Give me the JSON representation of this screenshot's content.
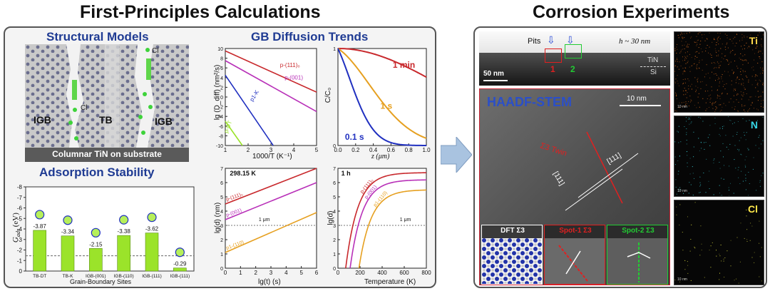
{
  "headers": {
    "left": "First-Principles Calculations",
    "right": "Corrosion Experiments"
  },
  "structural_models": {
    "title": "Structural Models",
    "labels": {
      "igb_left": "IGB",
      "tb": "TB",
      "igb_right": "IGB",
      "cl1": "Cl",
      "cl2": "Cl"
    },
    "caption": "Columnar TiN  on substrate"
  },
  "adsorption": {
    "title": "Adsorption Stability",
    "ylabel": "G",
    "ylabel_sub": "ads",
    "ylabel_unit": "(eV)",
    "xlabel": "Grain-Boundary Sites",
    "yticks": [
      "-8",
      "-7",
      "-6",
      "-5",
      "-4",
      "-3",
      "-2",
      "-1",
      "0"
    ],
    "chart_data": {
      "type": "bar",
      "categories": [
        "TB-DT",
        "TB-K",
        "IGB-(001)",
        "IGB-(110)",
        "IGB-(111)",
        "IGB-(111)"
      ],
      "values": [
        -3.87,
        -3.34,
        -2.15,
        -3.38,
        -3.62,
        -0.29
      ],
      "value_labels": [
        "-3.87",
        "-3.34",
        "-2.15",
        "-3.38",
        "-3.62",
        "-0.29"
      ],
      "ylim": [
        0,
        -8
      ],
      "bar_color": "#9be32a"
    }
  },
  "gb_diffusion": {
    "title": "GB Diffusion Trends",
    "p1": {
      "ylabel": "lg (D_diff) (nm²/s)",
      "xlabel": "1000/T (K⁻¹)",
      "xticks": [
        "1",
        "2",
        "3",
        "4",
        "5"
      ],
      "yticks": [
        "-10",
        "-8",
        "-6",
        "-4",
        "-2",
        "0",
        "2",
        "4",
        "6",
        "8",
        "10"
      ],
      "series": [
        {
          "name": "p-(111)₀",
          "color": "#c8282c"
        },
        {
          "name": "p-(001)",
          "color": "#b830b8"
        },
        {
          "name": "p1-K",
          "color": "#2030c0"
        },
        {
          "name": "p-DT",
          "color": "#9be32a"
        }
      ]
    },
    "p2": {
      "ylabel": "C/C₀",
      "xlabel": "z  (μm)",
      "xticks": [
        "0.0",
        "0.2",
        "0.4",
        "0.6",
        "0.8",
        "1.0"
      ],
      "yticks": [
        "0",
        "1"
      ],
      "series": [
        {
          "name": "1 min",
          "color": "#c8282c"
        },
        {
          "name": "1 s",
          "color": "#e6a020"
        },
        {
          "name": "0.1 s",
          "color": "#2030c0"
        }
      ]
    },
    "p3": {
      "title": "298.15 K",
      "ylabel": "lg(d) (nm)",
      "xlabel": "lg(t)  (s)",
      "xticks": [
        "0",
        "1",
        "2",
        "3",
        "4",
        "5",
        "6"
      ],
      "yticks": [
        "0",
        "1",
        "2",
        "3",
        "4",
        "5",
        "6",
        "7"
      ],
      "ref": "1   μm",
      "series": [
        {
          "name": "p-(111)₀",
          "color": "#c8282c"
        },
        {
          "name": "p-(001)",
          "color": "#b830b8"
        },
        {
          "name": "p1-(110)",
          "color": "#e6a020"
        }
      ]
    },
    "p4": {
      "title": "1 h",
      "ylabel": "lg(d)",
      "xlabel": "Temperature (K)",
      "xticks": [
        "0",
        "200",
        "400",
        "600",
        "800"
      ],
      "yticks": [
        "0",
        "1",
        "2",
        "3",
        "4",
        "5",
        "6",
        "7"
      ],
      "ref": "1   μm",
      "series": [
        {
          "name": "p-(111)₀",
          "color": "#c8282c"
        },
        {
          "name": "p-(001)",
          "color": "#b830b8"
        },
        {
          "name": "p1-(110)",
          "color": "#e6a020"
        }
      ]
    }
  },
  "corrosion": {
    "top_tem": {
      "pits": "Pits",
      "thickness": "h ~ 30 nm",
      "layer_tin": "TiN",
      "layer_si": "Si",
      "scale": "50 nm",
      "spot1": "1",
      "spot2": "2"
    },
    "haadf": {
      "title": "HAADF-STEM",
      "scale": "10 nm",
      "twin": "Σ3 Twin",
      "plane1": "[111]",
      "plane2": "[111]"
    },
    "insets": [
      {
        "label": "DFT Σ3",
        "color": "#ffffff"
      },
      {
        "label": "Spot-1 Σ3",
        "color": "#e02020"
      },
      {
        "label": "Spot-2 Σ3",
        "color": "#22cc33"
      }
    ],
    "eds": [
      {
        "label": "Ti",
        "color": "#ffd84a",
        "dot": "#d2691e"
      },
      {
        "label": "N",
        "color": "#36d6e6",
        "dot": "#36c8d0"
      },
      {
        "label": "Cl",
        "color": "#ffe84a",
        "dot": "#e0e040"
      }
    ],
    "eds_scale": "10 nm"
  },
  "colors": {
    "title_blue": "#1f3b93",
    "arrow": "#a9c3e0"
  }
}
